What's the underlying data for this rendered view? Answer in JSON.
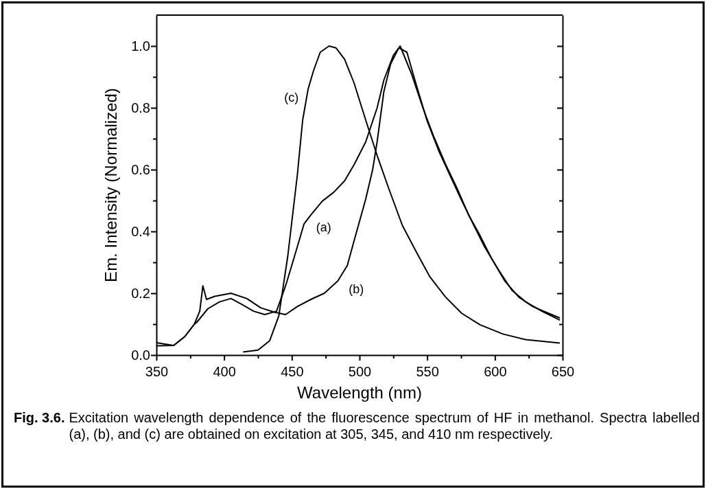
{
  "chart_data": {
    "type": "line",
    "xlabel": "Wavelength (nm)",
    "ylabel": "Em. Intensity (Normalized)",
    "xlim": [
      350,
      650
    ],
    "ylim": [
      0,
      1.1
    ],
    "xticks": [
      350,
      {
        "value": 375,
        "label": null
      },
      400,
      {
        "value": 425,
        "label": null
      },
      450,
      {
        "value": 475,
        "label": null
      },
      500,
      {
        "value": 525,
        "label": null
      },
      550,
      {
        "value": 575,
        "label": null
      },
      600,
      {
        "value": 625,
        "label": null
      },
      650
    ],
    "yticks": [
      {
        "value": 0,
        "label": "0.0"
      },
      {
        "value": 0.1,
        "label": null
      },
      0.2,
      {
        "value": 0.3,
        "label": null
      },
      0.4,
      {
        "value": 0.5,
        "label": null
      },
      0.6,
      {
        "value": 0.7,
        "label": null
      },
      0.8,
      {
        "value": 0.9,
        "label": null
      },
      {
        "value": 1,
        "label": "1.0"
      }
    ],
    "grid": false,
    "legend": false,
    "marker": "none",
    "line_style": "solid",
    "series": [
      {
        "name": "(a)",
        "color": "#000000",
        "x": [
          350,
          362.7,
          371,
          378,
          379.6,
          388,
          396.5,
          405,
          413,
          421.8,
          430,
          438.7,
          445.4,
          452,
          459,
          464,
          472.5,
          481,
          489,
          496,
          504.6,
          513,
          518,
          525,
          530,
          538.4,
          546.8,
          555,
          563.7,
          572,
          580.6,
          589,
          597.5,
          607.6,
          617.8,
          628,
          639.7,
          648
        ],
        "values": [
          0.04,
          0.031,
          0.06,
          0.1,
          0.105,
          0.15,
          0.172,
          0.183,
          0.164,
          0.142,
          0.131,
          0.142,
          0.224,
          0.32,
          0.424,
          0.453,
          0.498,
          0.527,
          0.564,
          0.616,
          0.69,
          0.8,
          0.89,
          0.97,
          1.0,
          0.91,
          0.8,
          0.705,
          0.616,
          0.54,
          0.453,
          0.387,
          0.313,
          0.238,
          0.187,
          0.157,
          0.135,
          0.12
        ]
      },
      {
        "name": "(b)",
        "color": "#000000",
        "x": [
          350,
          362.7,
          371,
          378,
          382,
          384.3,
          387,
          393,
          405,
          416.7,
          427,
          437,
          445.4,
          454,
          464,
          474,
          484,
          491,
          496,
          504.6,
          509.7,
          513,
          518,
          523,
          529,
          535,
          541.8,
          550,
          558.6,
          567,
          575.5,
          584,
          592.4,
          602.6,
          612.7,
          622.8,
          634.7,
          648
        ],
        "values": [
          0.03,
          0.031,
          0.06,
          0.1,
          0.142,
          0.224,
          0.18,
          0.19,
          0.2,
          0.183,
          0.153,
          0.139,
          0.131,
          0.157,
          0.18,
          0.2,
          0.24,
          0.29,
          0.37,
          0.505,
          0.6,
          0.69,
          0.853,
          0.942,
          0.994,
          0.98,
          0.876,
          0.757,
          0.66,
          0.58,
          0.5,
          0.424,
          0.35,
          0.276,
          0.209,
          0.172,
          0.142,
          0.113
        ]
      },
      {
        "name": "(c)",
        "color": "#000000",
        "x": [
          414,
          425,
          433.6,
          440.4,
          447,
          454,
          458,
          462,
          466,
          471,
          477.5,
          482.6,
          489,
          496,
          504.6,
          513,
          521.5,
          531.6,
          541.8,
          552,
          563.7,
          575.5,
          589,
          606,
          622.8,
          648
        ],
        "values": [
          0.01,
          0.016,
          0.046,
          0.127,
          0.32,
          0.58,
          0.76,
          0.86,
          0.92,
          0.98,
          1.0,
          0.994,
          0.957,
          0.88,
          0.76,
          0.646,
          0.54,
          0.42,
          0.335,
          0.253,
          0.187,
          0.135,
          0.098,
          0.068,
          0.05,
          0.039
        ]
      }
    ],
    "annotations": [
      "Fig. 3.6.",
      "Excitation wavelength dependence of the fluorescence spectrum of HF in methanol. Spectra labelled (a), (b), and (c) are obtained on excitation at 305, 345, and 410 nm respectively."
    ]
  }
}
